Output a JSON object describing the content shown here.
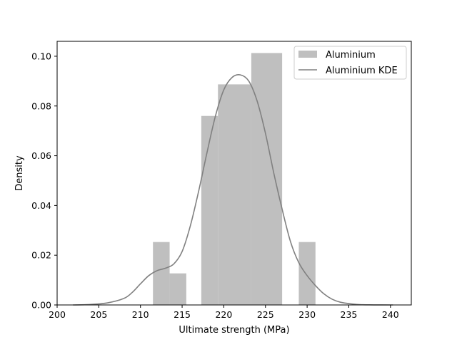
{
  "chart_data": {
    "type": "bar",
    "title": "",
    "xlabel": "Ultimate strength (MPa)",
    "ylabel": "Density",
    "xlim": [
      200,
      242.5
    ],
    "ylim": [
      0,
      0.106
    ],
    "xticks": [
      200,
      205,
      210,
      215,
      220,
      225,
      230,
      235,
      240
    ],
    "yticks": [
      0.0,
      0.02,
      0.04,
      0.06,
      0.08,
      0.1
    ],
    "ytick_labels": [
      "0.00",
      "0.02",
      "0.04",
      "0.06",
      "0.08",
      "0.10"
    ],
    "grid": false,
    "legend_position": "top-right",
    "histogram": {
      "name": "Aluminium",
      "color": "#bfbfbf",
      "bins": [
        {
          "x0": 211.5,
          "x1": 213.5,
          "density": 0.0253
        },
        {
          "x0": 213.5,
          "x1": 215.5,
          "density": 0.0127
        },
        {
          "x0": 217.3,
          "x1": 219.3,
          "density": 0.076
        },
        {
          "x0": 219.3,
          "x1": 223.3,
          "density": 0.0887
        },
        {
          "x0": 223.3,
          "x1": 227.0,
          "density": 0.1013
        },
        {
          "x0": 229.0,
          "x1": 231.0,
          "density": 0.0253
        }
      ]
    },
    "kde": {
      "name": "Aluminium KDE",
      "color": "#808080",
      "x": [
        201.9,
        204,
        206,
        208,
        209,
        210,
        211,
        212,
        213,
        214,
        215,
        216,
        217,
        218,
        219,
        220,
        221,
        222,
        223,
        224,
        225,
        226,
        227,
        228,
        229,
        230,
        231,
        232,
        233,
        234,
        236,
        238,
        240.3
      ],
      "y": [
        0.0,
        0.0002,
        0.0008,
        0.0026,
        0.005,
        0.0085,
        0.0118,
        0.0138,
        0.0148,
        0.0165,
        0.0215,
        0.032,
        0.046,
        0.0615,
        0.076,
        0.0865,
        0.0915,
        0.0925,
        0.09,
        0.082,
        0.069,
        0.053,
        0.0385,
        0.0255,
        0.017,
        0.0118,
        0.0078,
        0.0045,
        0.0023,
        0.0011,
        0.0002,
        3e-05,
        0.0
      ]
    }
  }
}
